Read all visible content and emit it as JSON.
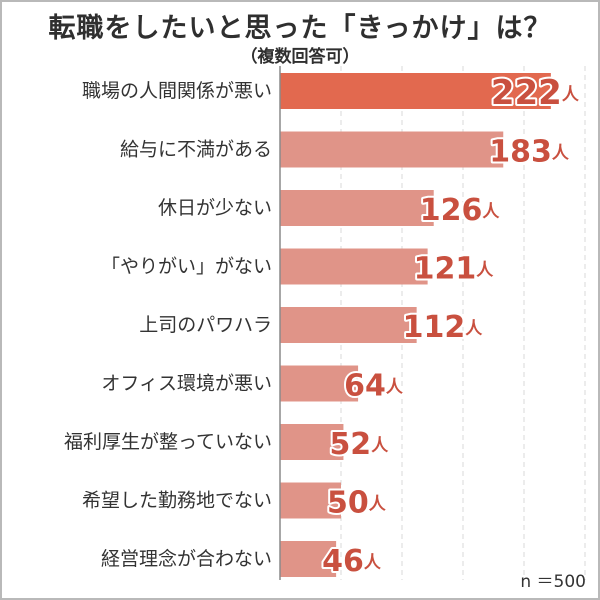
{
  "title": "転職をしたいと思った「きっかけ」は？",
  "subtitle": "（複数回答可）",
  "note": "n ＝500",
  "colors": {
    "highlight_bar": "#e2694f",
    "bar": "#e09488",
    "value_text": "#c9503f",
    "value_outline": "#ffffff",
    "axis": "#8a8a8a",
    "grid": "#d9d9d9"
  },
  "chart_data": {
    "type": "bar",
    "orientation": "horizontal",
    "categories": [
      "職場の人間関係が悪い",
      "給与に不満がある",
      "休日が少ない",
      "「やりがい」がない",
      "上司のパワハラ",
      "オフィス環境が悪い",
      "福利厚生が整っていない",
      "希望した勤務地でない",
      "経営理念が合わない"
    ],
    "values": [
      222,
      183,
      126,
      121,
      112,
      64,
      52,
      50,
      46
    ],
    "value_suffix": "人",
    "highlight_index": 0,
    "xlim": [
      0,
      500
    ],
    "grid": true,
    "title": "転職をしたいと思った「きっかけ」は？",
    "subtitle": "（複数回答可）"
  }
}
